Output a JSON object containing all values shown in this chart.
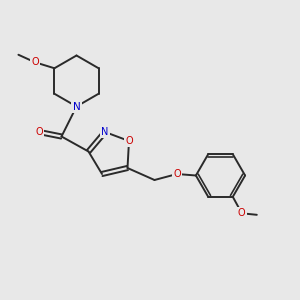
{
  "bg_color": "#e8e8e8",
  "bond_color": "#2a2a2a",
  "bond_width": 1.4,
  "atom_colors": {
    "O": "#cc0000",
    "N": "#0000cc",
    "C": "#2a2a2a"
  },
  "font_size": 7.0
}
